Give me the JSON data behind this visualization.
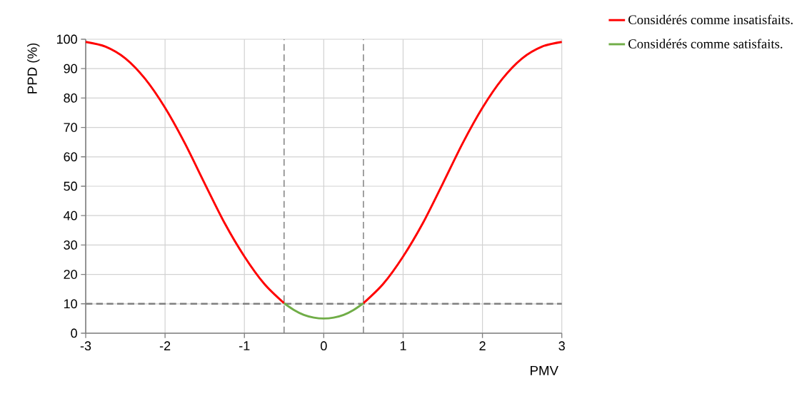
{
  "chart_data": {
    "type": "line",
    "xlabel": "PMV",
    "ylabel": "PPD (%)",
    "xlim": [
      -3,
      3
    ],
    "ylim": [
      0,
      100
    ],
    "xticks": [
      -3,
      -2,
      -1,
      0,
      1,
      2,
      3
    ],
    "yticks": [
      0,
      10,
      20,
      30,
      40,
      50,
      60,
      70,
      80,
      90,
      100
    ],
    "grid": true,
    "legend": "top right",
    "line_style": "solid",
    "marker": "none",
    "series": [
      {
        "name": "Considérés comme insatisfaits.",
        "color": "#ff0000",
        "x": [
          -3,
          -2.75,
          -2.5,
          -2.25,
          -2,
          -1.75,
          -1.5,
          -1.25,
          -1,
          -0.75,
          -0.5,
          -0.25,
          0,
          0.25,
          0.5,
          0.75,
          1,
          1.25,
          1.5,
          1.75,
          2,
          2.25,
          2.5,
          2.75,
          3
        ],
        "values": [
          99.1,
          97.5,
          93.5,
          86.5,
          76.7,
          64.6,
          50.9,
          37.5,
          26.1,
          16.8,
          10.2,
          null,
          null,
          null,
          10.2,
          16.8,
          26.1,
          37.5,
          50.9,
          64.6,
          76.7,
          86.5,
          93.5,
          97.5,
          99.1
        ]
      },
      {
        "name": "Considérés comme satisfaits.",
        "color": "#70ad47",
        "x": [
          -0.5,
          -0.375,
          -0.25,
          -0.125,
          0,
          0.125,
          0.25,
          0.375,
          0.5
        ],
        "values": [
          10.2,
          7.9,
          6.2,
          5.3,
          5.0,
          5.3,
          6.2,
          7.9,
          10.2
        ]
      }
    ],
    "ref_lines": [
      {
        "axis": "y",
        "value": 10,
        "color": "#7f7f7f",
        "line_style": "dashed"
      },
      {
        "axis": "x",
        "value": -0.5,
        "color": "#7f7f7f",
        "line_style": "dashed"
      },
      {
        "axis": "x",
        "value": 0.5,
        "color": "#7f7f7f",
        "line_style": "dashed"
      }
    ]
  }
}
